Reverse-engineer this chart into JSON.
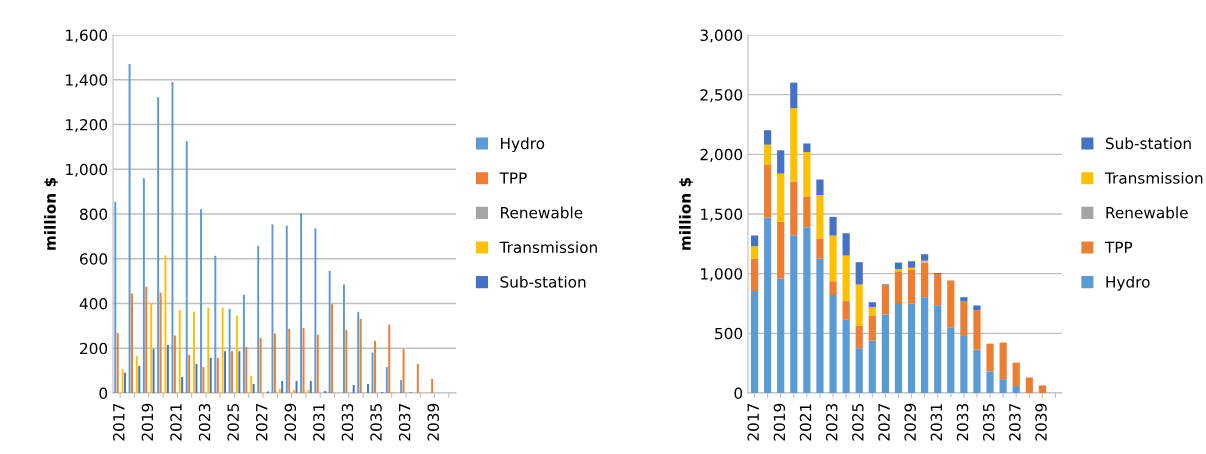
{
  "chart_data": [
    {
      "type": "bar",
      "ylabel": "million $",
      "categories": [
        "2017",
        null,
        "2019",
        null,
        "2021",
        null,
        "2023",
        null,
        "2025",
        null,
        "2027",
        null,
        "2029",
        null,
        "2031",
        null,
        "2033",
        null,
        "2035",
        null,
        "2037",
        null,
        "2039",
        null
      ],
      "series": [
        {
          "name": "Hydro",
          "color": "#5b9bd5",
          "values": [
            855,
            1470,
            960,
            1322,
            1390,
            1125,
            821,
            613,
            376,
            439,
            658,
            754,
            748,
            803,
            736,
            546,
            485,
            363,
            181,
            116,
            58,
            0,
            0,
            0
          ]
        },
        {
          "name": "TPP",
          "color": "#ed7d31",
          "values": [
            269,
            445,
            475,
            449,
            257,
            170,
            116,
            157,
            187,
            206,
            246,
            266,
            287,
            291,
            261,
            397,
            282,
            331,
            233,
            306,
            196,
            130,
            63,
            0
          ]
        },
        {
          "name": "Renewable",
          "color": "#a5a5a5",
          "values": [
            0,
            0,
            0,
            0,
            0,
            0,
            0,
            0,
            0,
            0,
            0,
            0,
            0,
            0,
            0,
            0,
            0,
            0,
            0,
            0,
            0,
            0,
            0,
            0
          ]
        },
        {
          "name": "Transmission",
          "color": "#ffc000",
          "values": [
            106,
            166,
            403,
            615,
            372,
            364,
            382,
            382,
            346,
            76,
            0,
            19,
            15,
            15,
            0,
            0,
            0,
            0,
            0,
            3,
            0,
            0,
            0,
            0
          ]
        },
        {
          "name": "Sub-station",
          "color": "#4472c4",
          "values": [
            90,
            121,
            196,
            215,
            72,
            130,
            157,
            187,
            187,
            40,
            7,
            54,
            54,
            54,
            9,
            0,
            36,
            40,
            4,
            0,
            3,
            0,
            0,
            0
          ]
        }
      ],
      "ylim": [
        0,
        1600
      ],
      "yticks": [
        {
          "value": 0,
          "label": "0"
        },
        {
          "value": 200,
          "label": "200"
        },
        {
          "value": 400,
          "label": "400"
        },
        {
          "value": 600,
          "label": "600"
        },
        {
          "value": 800,
          "label": "800"
        },
        {
          "value": 1000,
          "label": "1,000"
        },
        {
          "value": 1200,
          "label": "1,200"
        },
        {
          "value": 1400,
          "label": "1,400"
        },
        {
          "value": 1600,
          "label": "1,600"
        }
      ],
      "grid": "y",
      "legend": "right"
    },
    {
      "type": "bar",
      "stacked": true,
      "ylabel": "million $",
      "categories": [
        "2017",
        null,
        "2019",
        null,
        "2021",
        null,
        "2023",
        null,
        "2025",
        null,
        "2027",
        null,
        "2029",
        null,
        "2031",
        null,
        "2033",
        null,
        "2035",
        null,
        "2037",
        null,
        "2039",
        null
      ],
      "series": [
        {
          "name": "Hydro",
          "color": "#5b9bd5",
          "values": [
            855,
            1470,
            960,
            1322,
            1390,
            1125,
            821,
            613,
            376,
            439,
            658,
            754,
            748,
            803,
            736,
            546,
            485,
            363,
            181,
            116,
            58,
            0,
            0,
            0
          ]
        },
        {
          "name": "TPP",
          "color": "#ed7d31",
          "values": [
            269,
            445,
            475,
            449,
            257,
            170,
            116,
            157,
            187,
            206,
            246,
            266,
            287,
            291,
            261,
            397,
            282,
            331,
            233,
            306,
            196,
            130,
            63,
            0
          ]
        },
        {
          "name": "Renewable",
          "color": "#a5a5a5",
          "values": [
            0,
            0,
            0,
            0,
            0,
            0,
            0,
            0,
            0,
            0,
            0,
            0,
            0,
            0,
            0,
            0,
            0,
            0,
            0,
            0,
            0,
            0,
            0,
            0
          ]
        },
        {
          "name": "Transmission",
          "color": "#ffc000",
          "values": [
            106,
            166,
            403,
            615,
            372,
            364,
            382,
            382,
            346,
            76,
            0,
            19,
            15,
            15,
            0,
            0,
            0,
            0,
            0,
            3,
            0,
            0,
            0,
            0
          ]
        },
        {
          "name": "Sub-station",
          "color": "#4472c4",
          "values": [
            90,
            121,
            196,
            215,
            72,
            130,
            157,
            187,
            187,
            40,
            7,
            54,
            54,
            54,
            9,
            0,
            36,
            40,
            null,
            0,
            null,
            0,
            0,
            0
          ]
        }
      ],
      "ylim": [
        0,
        3000
      ],
      "yticks": [
        {
          "value": 0,
          "label": "0"
        },
        {
          "value": 500,
          "label": "500"
        },
        {
          "value": 1000,
          "label": "1,000"
        },
        {
          "value": 1500,
          "label": "1,500"
        },
        {
          "value": 2000,
          "label": "2,000"
        },
        {
          "value": 2500,
          "label": "2,500"
        },
        {
          "value": 3000,
          "label": "3,000"
        }
      ],
      "grid": "y",
      "legend": "right"
    }
  ]
}
